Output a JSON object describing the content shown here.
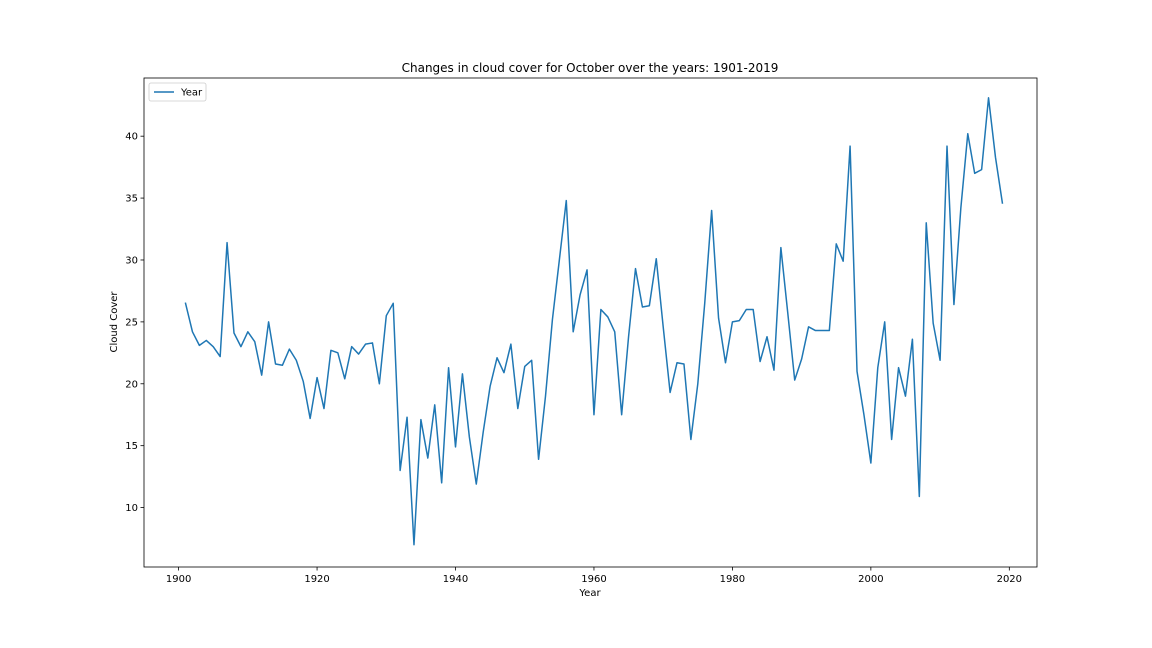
{
  "colors": {
    "series": "#1f77b4",
    "axes": "#000000",
    "background": "#ffffff",
    "legend_border": "#cccccc"
  },
  "chart_data": {
    "type": "line",
    "title": "Changes in cloud cover for October over the years: 1901-2019",
    "xlabel": "Year",
    "ylabel": "Cloud Cover",
    "xlim": [
      1895,
      2024
    ],
    "ylim": [
      5.2,
      44.7
    ],
    "xticks": [
      1900,
      1920,
      1940,
      1960,
      1980,
      2000,
      2020
    ],
    "yticks": [
      10,
      15,
      20,
      25,
      30,
      35,
      40
    ],
    "grid": false,
    "legend_position": "top-left",
    "series": [
      {
        "name": "Year",
        "color": "#1f77b4",
        "x": [
          1901,
          1902,
          1903,
          1904,
          1905,
          1906,
          1907,
          1908,
          1909,
          1910,
          1911,
          1912,
          1913,
          1914,
          1915,
          1916,
          1917,
          1918,
          1919,
          1920,
          1921,
          1922,
          1923,
          1924,
          1925,
          1926,
          1927,
          1928,
          1929,
          1930,
          1931,
          1932,
          1933,
          1934,
          1935,
          1936,
          1937,
          1938,
          1939,
          1940,
          1941,
          1942,
          1943,
          1944,
          1945,
          1946,
          1947,
          1948,
          1949,
          1950,
          1951,
          1952,
          1953,
          1954,
          1955,
          1956,
          1957,
          1958,
          1959,
          1960,
          1961,
          1962,
          1963,
          1964,
          1965,
          1966,
          1967,
          1968,
          1969,
          1970,
          1971,
          1972,
          1973,
          1974,
          1975,
          1976,
          1977,
          1978,
          1979,
          1980,
          1981,
          1982,
          1983,
          1984,
          1985,
          1986,
          1987,
          1988,
          1989,
          1990,
          1991,
          1992,
          1993,
          1994,
          1995,
          1996,
          1997,
          1998,
          1999,
          2000,
          2001,
          2002,
          2003,
          2004,
          2005,
          2006,
          2007,
          2008,
          2009,
          2010,
          2011,
          2012,
          2013,
          2014,
          2015,
          2016,
          2017,
          2018,
          2019
        ],
        "y": [
          26.5,
          24.2,
          23.1,
          23.5,
          23.0,
          22.2,
          31.4,
          24.1,
          23.0,
          24.2,
          23.4,
          20.7,
          25.0,
          21.6,
          21.5,
          22.8,
          21.9,
          20.2,
          17.2,
          20.5,
          18.0,
          22.7,
          22.5,
          20.4,
          23.0,
          22.4,
          23.2,
          23.3,
          20.0,
          25.5,
          26.5,
          13.0,
          17.3,
          7.0,
          17.1,
          14.0,
          18.3,
          12.0,
          21.3,
          14.9,
          20.8,
          15.7,
          11.9,
          16.1,
          19.8,
          22.1,
          20.9,
          23.2,
          18.0,
          21.4,
          21.9,
          13.9,
          19.0,
          25.2,
          30.0,
          34.8,
          24.2,
          27.2,
          29.2,
          17.5,
          26.0,
          25.4,
          24.2,
          17.5,
          23.8,
          29.3,
          26.2,
          26.3,
          30.1,
          24.6,
          19.3,
          21.7,
          21.6,
          15.5,
          20.0,
          26.5,
          34.0,
          25.3,
          21.7,
          25.0,
          25.1,
          26.0,
          26.0,
          21.8,
          23.8,
          21.1,
          31.0,
          25.7,
          20.3,
          22.0,
          24.6,
          24.3,
          24.3,
          24.3,
          31.3,
          29.9,
          39.2,
          21.0,
          17.5,
          13.6,
          21.3,
          25.0,
          15.5,
          21.3,
          19.0,
          23.6,
          10.9,
          33.0,
          24.9,
          21.9,
          39.2,
          26.4,
          34.2,
          40.2,
          37.0,
          37.3,
          43.1,
          38.3,
          34.6
        ]
      }
    ]
  }
}
